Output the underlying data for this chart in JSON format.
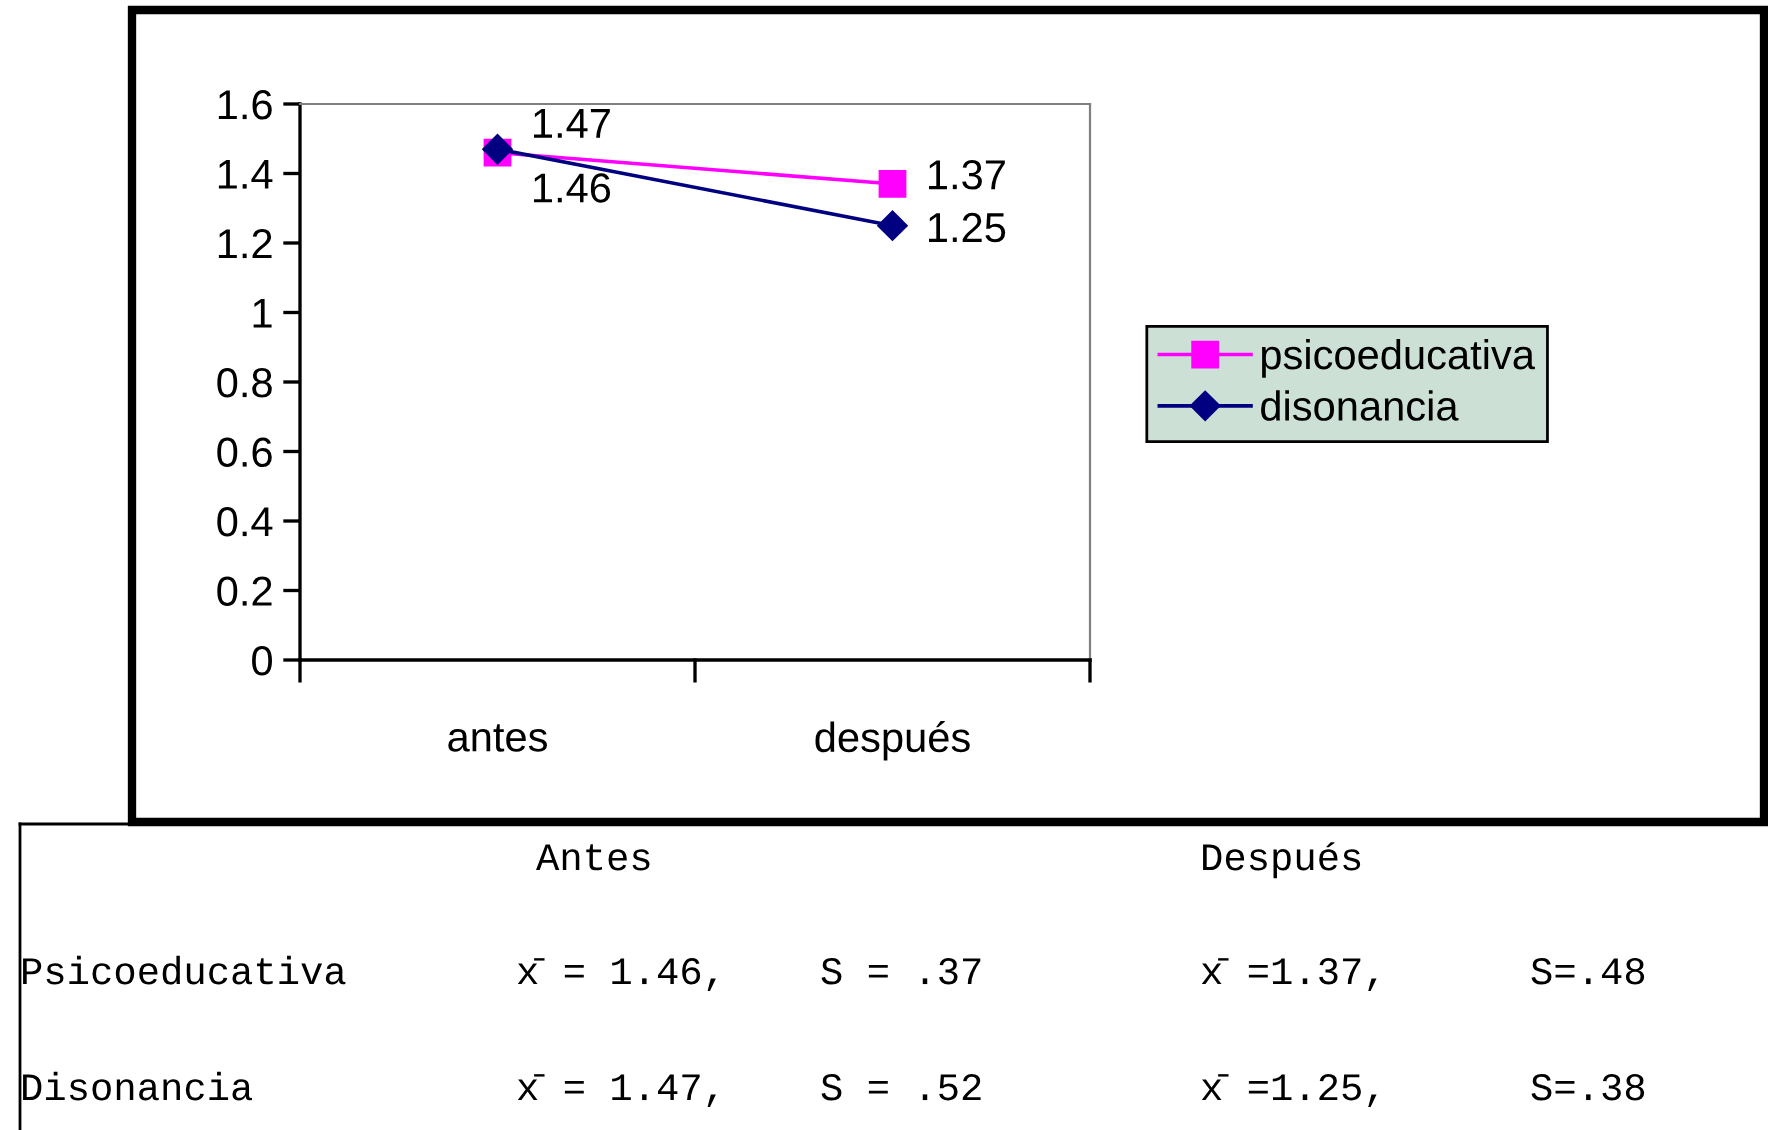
{
  "chart_data": {
    "type": "line",
    "categories": [
      "antes",
      "después"
    ],
    "series": [
      {
        "name": "psicoeducativa",
        "color": "#ff00ff",
        "values": [
          1.46,
          1.37
        ],
        "marker": "square"
      },
      {
        "name": "disonancia",
        "color": "#000080",
        "values": [
          1.47,
          1.25
        ],
        "marker": "diamond"
      }
    ],
    "ylim": [
      0,
      1.6
    ],
    "yticks": [
      0,
      0.2,
      0.4,
      0.6,
      0.8,
      1,
      1.2,
      1.4,
      1.6
    ],
    "grid": false,
    "legend": "right",
    "data_labels": true,
    "line_style": "solid",
    "annotations": [
      "Antes",
      "Después",
      "Psicoeducativa",
      "x̄ = 1.46,",
      "S = .37",
      "x̄ =1.37,",
      "S=.48",
      "Disonancia",
      "x̄ = 1.47,",
      "S = .52",
      "x̄ =1.25,",
      "S=.38"
    ]
  }
}
